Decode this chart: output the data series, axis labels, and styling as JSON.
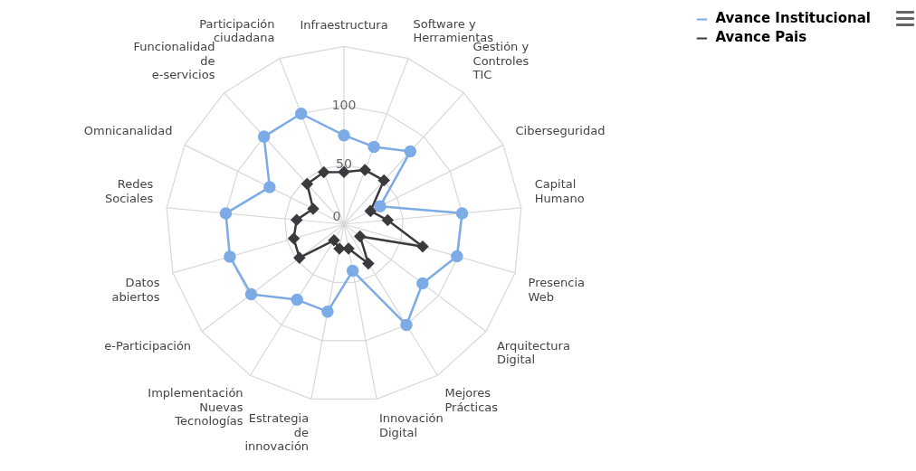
{
  "chart_data": {
    "type": "radar",
    "categories": [
      "Infraestructura",
      "Software y Herramientas",
      "Gestión y Controles TIC",
      "Ciberseguridad",
      "Capital Humano",
      "Presencia Web",
      "Arquitectura Digital",
      "Mejores Prácticas",
      "Innovación Digital",
      "Estrategia de innovación",
      "Implementación Nuevas Tecnologías",
      "e-Participación",
      "Datos abiertos",
      "Redes Sociales",
      "Omnicanalidad",
      "Funcionalidad de e-servicios",
      "Participación ciudadana"
    ],
    "series": [
      {
        "name": "Avance Institucional",
        "color": "#7cabe6",
        "marker": "circle",
        "values": [
          75,
          70,
          83,
          34,
          100,
          99,
          83,
          100,
          40,
          75,
          75,
          98,
          100,
          100,
          70,
          100,
          100
        ]
      },
      {
        "name": "Avance Pais",
        "color": "#3a3a3f",
        "marker": "diamond",
        "values": [
          44,
          49,
          50,
          25,
          37,
          69,
          17,
          39,
          21,
          21,
          16,
          47,
          44,
          40,
          29,
          46,
          47
        ]
      }
    ],
    "ylim": [
      0,
      150
    ],
    "yticks": [
      0,
      50,
      100
    ],
    "grid": true,
    "legend": "top right"
  }
}
